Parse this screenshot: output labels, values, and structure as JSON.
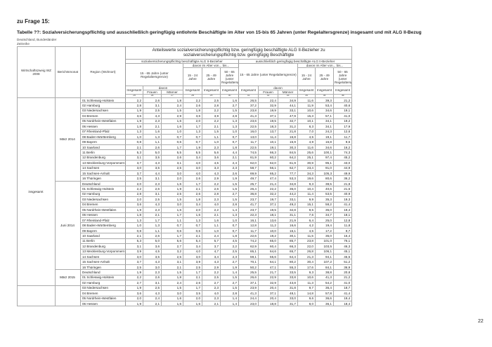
{
  "question": "zu Frage 15:",
  "title": "Tabelle ??: Sozialversicherungspflichtig und ausschließlich geringfügig entlohnte Beschäftigte im Alter von 15-bis 65 Jahren (unter Regelaltersgrenze) insgesamt und mit ALG II-Bezug",
  "subtitle1": "Deutschland, Bundesländer",
  "subtitle2": "Zeitreihe",
  "page_number": "22",
  "header": {
    "wz": "Wirtschaftszweig WZ 2008",
    "month": "Berichtsmonat",
    "region": "Region (Wohnort)",
    "main": "Anteilswerte sozialversicherungspflichtig bzw. geringfügig beschäftigte ALG II-Bezieher zu sozialversicherungspflichtig bzw. geringfügig Beschäftigte",
    "block1": "sozialversicherungspflichtig beschäftigte ALG II-Bezieher",
    "block2": "ausschließlich geringfügig beschäftigte ALG II-Bezieher",
    "age_total": "15 - 65 Jahre (unter Regelaltersgrenze)",
    "davon_alter": "davon im Alter von... bis...",
    "age1": "15 - 24 Jahre",
    "age2": "25 - 49 Jahre",
    "age3": "50 - 65 Jahre (unter Regelaltersgrenze)",
    "insgesamt": "Insgesamt",
    "davon": "davon",
    "frauen": "Frauen",
    "maenner": "Männer",
    "col_numbers": [
      "25",
      "26",
      "27",
      "28",
      "29",
      "30",
      "31",
      "32",
      "33",
      "34",
      "35",
      "36"
    ]
  },
  "sections": [
    {
      "wz": "insgesamt",
      "months": [
        {
          "label": "März 2014",
          "rows": [
            [
              "01 Schleswig-Holstein",
              "2,2",
              "2,6",
              "1,8",
              "2,2",
              "2,5",
              "1,6",
              "26,5",
              "22,4",
              "34,9",
              "11,6",
              "39,3",
              "21,2"
            ],
            [
              "02 Hamburg",
              "2,8",
              "3,1",
              "2,4",
              "2,6",
              "2,8",
              "2,7",
              "37,2",
              "32,9",
              "44,1",
              "11,9",
              "53,4",
              "40,6"
            ],
            [
              "03 Niedersachsen",
              "1,9",
              "2,5",
              "1,5",
              "1,8",
              "2,2",
              "1,5",
              "23,8",
              "19,9",
              "33,1",
              "10,6",
              "34,6",
              "19,1"
            ],
            [
              "04 Bremen",
              "3,6",
              "4,3",
              "2,9",
              "3,6",
              "3,9",
              "2,8",
              "41,3",
              "37,1",
              "47,9",
              "15,3",
              "57,1",
              "41,0"
            ],
            [
              "05 Nordrhein-Westfalen",
              "1,9",
              "2,3",
              "1,6",
              "2,0",
              "2,2",
              "1,3",
              "23,6",
              "19,5",
              "32,7",
              "10,1",
              "34,1",
              "19,2"
            ],
            [
              "06 Hessen",
              "1,8",
              "2,1",
              "1,6",
              "1,7",
              "2,1",
              "1,3",
              "22,5",
              "18,3",
              "31,2",
              "8,3",
              "34,1",
              "17,9"
            ],
            [
              "07 Rheinland-Pfalz",
              "1,3",
              "1,6",
              "1,0",
              "1,3",
              "1,5",
              "1,0",
              "16,0",
              "13,7",
              "21,8",
              "7,0",
              "24,3",
              "12,6"
            ],
            [
              "08 Baden-Württemberg",
              "1,0",
              "1,3",
              "0,7",
              "0,7",
              "1,1",
              "0,7",
              "13,0",
              "11,4",
              "16,8",
              "4,5",
              "19,1",
              "11,7"
            ],
            [
              "09 Bayern",
              "0,8",
              "1,1",
              "0,6",
              "0,7",
              "1,0",
              "0,7",
              "11,7",
              "10,1",
              "15,9",
              "4,9",
              "16,8",
              "9,6"
            ],
            [
              "10 Saarland",
              "2,1",
              "2,6",
              "1,7",
              "1,9",
              "2,3",
              "1,8",
              "22,5",
              "19,1",
              "30,3",
              "11,6",
              "34,6",
              "16,2"
            ],
            [
              "11 Berlin",
              "5,3",
              "5,0",
              "5,5",
              "5,5",
              "5,6",
              "4,4",
              "74,5",
              "66,3",
              "84,5",
              "25,6",
              "100,1",
              "74,3"
            ],
            [
              "12 Brandenburg",
              "3,1",
              "3,5",
              "2,6",
              "3,4",
              "3,6",
              "2,1",
              "61,9",
              "60,2",
              "64,2",
              "25,1",
              "97,4",
              "45,2"
            ],
            [
              "13 Mecklenburg-Vorpommern",
              "3,7",
              "4,3",
              "3,1",
              "4,0",
              "4,5",
              "2,4",
              "62,0",
              "62,0",
              "61,9",
              "30,9",
              "95,1",
              "43,0"
            ],
            [
              "14 Sachsen",
              "3,0",
              "3,5",
              "2,5",
              "3,0",
              "3,3",
              "2,3",
              "58,7",
              "56,1",
              "62,7",
              "23,4",
              "91,0",
              "44,9"
            ],
            [
              "15 Sachsen-Anhalt",
              "3,7",
              "4,4",
              "3,0",
              "4,0",
              "4,3",
              "2,6",
              "69,9",
              "65,2",
              "77,7",
              "34,3",
              "105,3",
              "49,9"
            ],
            [
              "16 Thüringen",
              "2,5",
              "3,1",
              "2,0",
              "2,6",
              "2,9",
              "1,9",
              "49,7",
              "47,4",
              "53,3",
              "19,6",
              "80,6",
              "36,2"
            ]
          ]
        },
        {
          "label": "Juni 2014",
          "rows": [
            [
              "Deutschland",
              "2,0",
              "2,3",
              "1,6",
              "1,7",
              "2,2",
              "1,5",
              "25,7",
              "21,4",
              "34,8",
              "9,3",
              "38,5",
              "21,8"
            ],
            [
              "01 Schleswig-Holstein",
              "2,2",
              "2,6",
              "1,9",
              "2,1",
              "2,6",
              "1,6",
              "26,4",
              "22,2",
              "35,0",
              "10,4",
              "40,6",
              "21,6"
            ],
            [
              "02 Hamburg",
              "2,8",
              "3,1",
              "2,5",
              "2,6",
              "2,8",
              "2,7",
              "36,8",
              "32,2",
              "44,2",
              "11,4",
              "53,5",
              "40,9"
            ],
            [
              "03 Niedersachsen",
              "2,0",
              "2,5",
              "1,5",
              "1,8",
              "2,3",
              "1,5",
              "23,7",
              "19,7",
              "33,1",
              "9,9",
              "35,3",
              "19,3"
            ],
            [
              "04 Bremen",
              "3,6",
              "4,3",
              "3,0",
              "3,4",
              "4,0",
              "2,8",
              "41,7",
              "37,1",
              "49,2",
              "15,1",
              "58,2",
              "41,4"
            ],
            [
              "05 Nordrhein-Westfalen",
              "1,9",
              "2,3",
              "1,6",
              "2,0",
              "2,2",
              "1,4",
              "23,7",
              "19,5",
              "32,8",
              "9,5",
              "35,0",
              "19,4"
            ],
            [
              "06 Hessen",
              "1,8",
              "2,1",
              "1,7",
              "1,6",
              "2,1",
              "1,3",
              "22,3",
              "18,1",
              "31,1",
              "7,6",
              "34,7",
              "18,1"
            ],
            [
              "07 Rheinland-Pfalz",
              "1,3",
              "1,7",
              "1,1",
              "1,3",
              "1,6",
              "1,0",
              "16,1",
              "13,6",
              "21,9",
              "6,4",
              "25,0",
              "12,8"
            ],
            [
              "08 Baden-Württemberg",
              "1,0",
              "1,3",
              "0,7",
              "0,7",
              "1,1",
              "0,7",
              "12,8",
              "11,2",
              "16,6",
              "4,2",
              "19,4",
              "11,8"
            ],
            [
              "09 Bayern",
              "0,8",
              "1,1",
              "0,6",
              "0,6",
              "1,0",
              "0,7",
              "11,7",
              "10,0",
              "16,1",
              "4,5",
              "17,2",
              "9,7"
            ],
            [
              "10 Saarland",
              "2,1",
              "2,6",
              "1,7",
              "2,1",
              "2,4",
              "1,8",
              "22,6",
              "19,2",
              "30,1",
              "11,5",
              "35,0",
              "16,4"
            ],
            [
              "11 Berlin",
              "5,3",
              "5,0",
              "5,6",
              "5,4",
              "5,7",
              "4,5",
              "74,2",
              "65,0",
              "85,7",
              "23,8",
              "101,0",
              "76,1"
            ],
            [
              "12 Brandenburg",
              "3,1",
              "3,6",
              "2,7",
              "3,4",
              "3,7",
              "2,2",
              "62,9",
              "60,4",
              "66,3",
              "22,0",
              "103,5",
              "46,3"
            ],
            [
              "13 Mecklenburg-Vorpommern",
              "3,9",
              "4,5",
              "3,2",
              "4,0",
              "4,7",
              "2,5",
              "65,1",
              "64,6",
              "65,7",
              "26,8",
              "106,1",
              "45,1"
            ],
            [
              "14 Sachsen",
              "3,0",
              "3,5",
              "2,5",
              "3,0",
              "3,4",
              "2,3",
              "59,1",
              "55,6",
              "64,4",
              "21,3",
              "94,1",
              "45,5"
            ],
            [
              "15 Sachsen-Anhalt",
              "3,7",
              "4,3",
              "3,1",
              "3,9",
              "4,3",
              "2,7",
              "70,1",
              "64,1",
              "80,2",
              "30,4",
              "107,2",
              "51,2"
            ],
            [
              "16 Thüringen",
              "2,5",
              "3,0",
              "2,1",
              "2,5",
              "2,9",
              "1,9",
              "50,2",
              "47,1",
              "55,3",
              "17,6",
              "84,1",
              "36,9"
            ]
          ]
        },
        {
          "label": "März 2015",
          "rows": [
            [
              "Deutschland",
              "1,9",
              "2,3",
              "1,5",
              "1,7",
              "2,2",
              "1,4",
              "25,5",
              "21,7",
              "33,5",
              "9,3",
              "38,8",
              "20,8"
            ],
            [
              "01 Schleswig-Holstein",
              "2,2",
              "2,6",
              "1,8",
              "2,1",
              "2,5",
              "1,5",
              "26,6",
              "22,9",
              "33,8",
              "10,6",
              "41,3",
              "21,2"
            ],
            [
              "02 Hamburg",
              "2,7",
              "3,1",
              "2,4",
              "2,6",
              "2,7",
              "2,7",
              "37,1",
              "32,9",
              "43,8",
              "11,3",
              "54,2",
              "41,0"
            ]
          ]
        }
      ]
    },
    {
      "wz": "",
      "months": [
        {
          "label": "",
          "rows": [
            [
              "03 Niedersachsen",
              "1,9",
              "2,5",
              "1,5",
              "1,7",
              "2,3",
              "1,5",
              "23,9",
              "20,4",
              "31,8",
              "9,7",
              "36,4",
              "18,7"
            ],
            [
              "04 Bremen",
              "3,6",
              "4,3",
              "3,0",
              "3,5",
              "4,0",
              "2,8",
              "41,3",
              "37,1",
              "48,1",
              "14,8",
              "57,8",
              "41,4"
            ],
            [
              "05 Nordrhein-Westfalen",
              "2,0",
              "2,4",
              "1,6",
              "2,0",
              "2,3",
              "1,4",
              "24,4",
              "20,4",
              "33,0",
              "9,6",
              "36,6",
              "19,4"
            ],
            [
              "06 Hessen",
              "1,9",
              "2,1",
              "1,6",
              "1,6",
              "2,1",
              "1,4",
              "23,0",
              "18,8",
              "31,7",
              "8,0",
              "36,1",
              "18,4"
            ]
          ]
        }
      ]
    }
  ]
}
